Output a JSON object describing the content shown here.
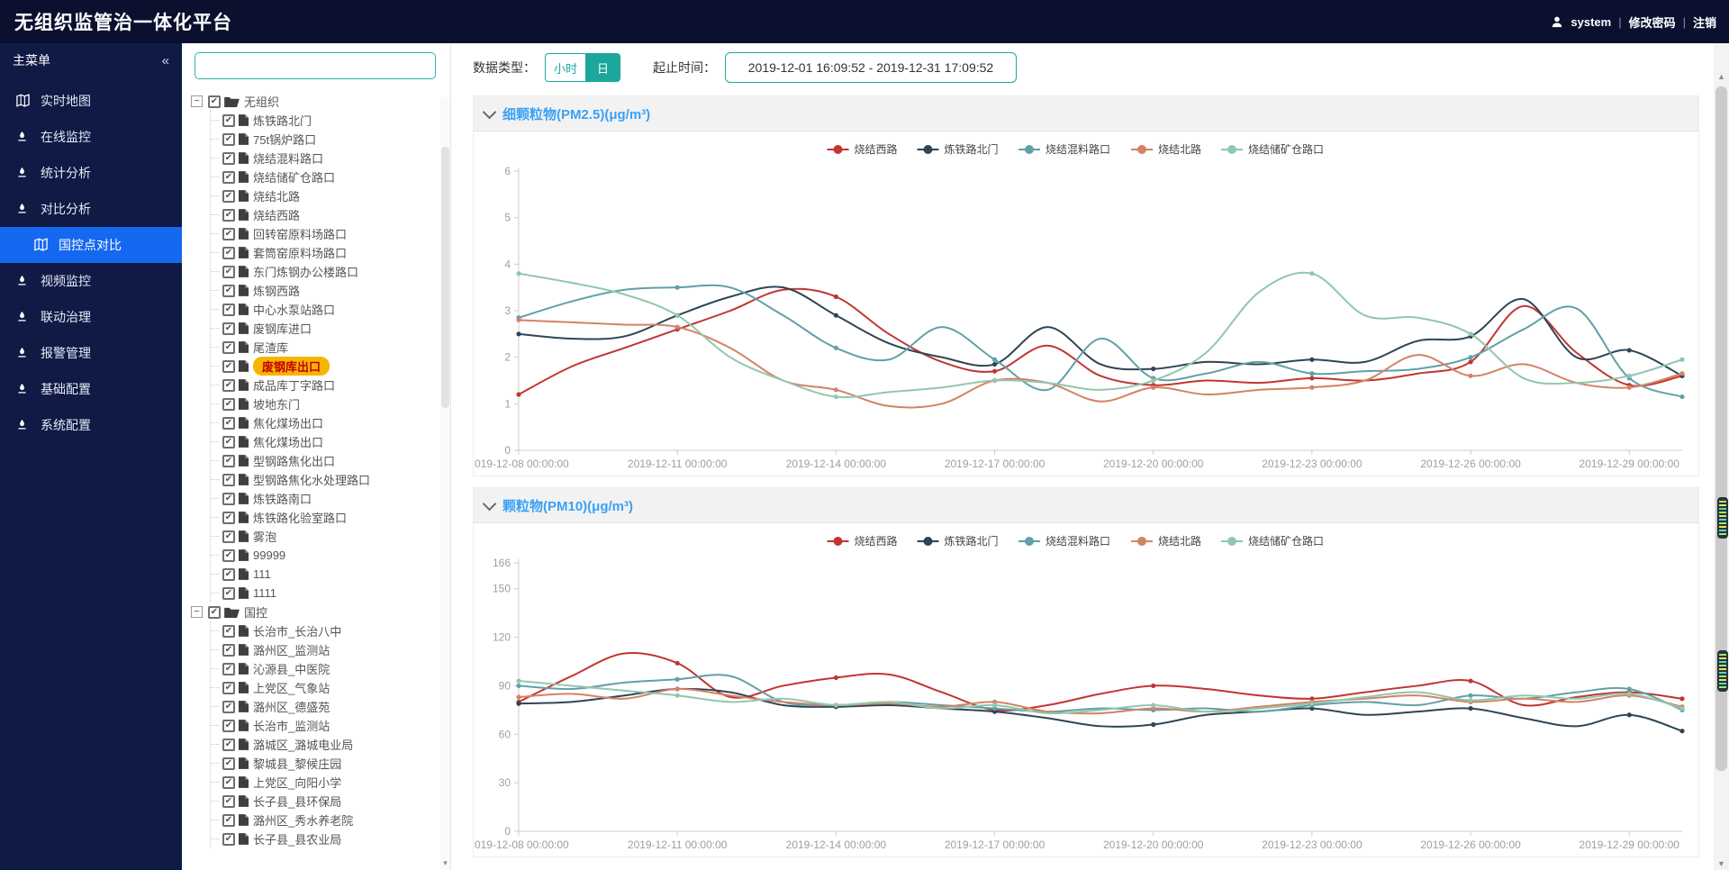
{
  "header": {
    "title": "无组织监管治一体化平台",
    "username": "system",
    "change_password": "修改密码",
    "logout": "注销",
    "separator": "|"
  },
  "sidebar": {
    "title": "主菜单",
    "collapse_glyph": "«",
    "items": [
      {
        "label": "实时地图",
        "icon": "map-icon",
        "active": false,
        "child": false
      },
      {
        "label": "在线监控",
        "icon": "pen-icon",
        "active": false,
        "child": false
      },
      {
        "label": "统计分析",
        "icon": "pen-icon",
        "active": false,
        "child": false
      },
      {
        "label": "对比分析",
        "icon": "pen-icon",
        "active": false,
        "child": false
      },
      {
        "label": "国控点对比",
        "icon": "map-icon",
        "active": true,
        "child": true
      },
      {
        "label": "视频监控",
        "icon": "pen-icon",
        "active": false,
        "child": false
      },
      {
        "label": "联动治理",
        "icon": "pen-icon",
        "active": false,
        "child": false
      },
      {
        "label": "报警管理",
        "icon": "pen-icon",
        "active": false,
        "child": false
      },
      {
        "label": "基础配置",
        "icon": "pen-icon",
        "active": false,
        "child": false
      },
      {
        "label": "系统配置",
        "icon": "pen-icon",
        "active": false,
        "child": false
      }
    ]
  },
  "tree": {
    "search_value": "",
    "search_placeholder": "",
    "expander_glyph": "−",
    "check_glyph": "✔",
    "roots": [
      {
        "label": "无组织",
        "children": [
          {
            "label": "炼铁路北门"
          },
          {
            "label": "75t锅炉路口"
          },
          {
            "label": "烧结混料路口"
          },
          {
            "label": "烧结储矿仓路口"
          },
          {
            "label": "烧结北路"
          },
          {
            "label": "烧结西路"
          },
          {
            "label": "回转窑原料场路口"
          },
          {
            "label": "套筒窑原料场路口"
          },
          {
            "label": "东门炼钢办公楼路口"
          },
          {
            "label": "炼钢西路"
          },
          {
            "label": "中心水泵站路口"
          },
          {
            "label": "废钢库进口"
          },
          {
            "label": "尾渣库"
          },
          {
            "label": "废钢库出口",
            "highlighted": true
          },
          {
            "label": "成品库丁字路口"
          },
          {
            "label": "坡地东门"
          },
          {
            "label": "焦化煤场出口"
          },
          {
            "label": "焦化煤场出口"
          },
          {
            "label": "型钢路焦化出口"
          },
          {
            "label": "型钢路焦化水处理路口"
          },
          {
            "label": "炼铁路南口"
          },
          {
            "label": "炼铁路化验室路口"
          },
          {
            "label": "雾泡"
          },
          {
            "label": "99999"
          },
          {
            "label": "111"
          },
          {
            "label": "1111"
          }
        ]
      },
      {
        "label": "国控",
        "children": [
          {
            "label": "长治市_长治八中"
          },
          {
            "label": "潞州区_监测站"
          },
          {
            "label": "沁源县_中医院"
          },
          {
            "label": "上党区_气象站"
          },
          {
            "label": "潞州区_德盛苑"
          },
          {
            "label": "长治市_监测站"
          },
          {
            "label": "潞城区_潞城电业局"
          },
          {
            "label": "黎城县_黎候庄园"
          },
          {
            "label": "上党区_向阳小学"
          },
          {
            "label": "长子县_县环保局"
          },
          {
            "label": "潞州区_秀水养老院"
          },
          {
            "label": "长子县_县农业局"
          }
        ]
      }
    ]
  },
  "toolbar": {
    "data_type_label": "数据类型：",
    "hour_label": "小时",
    "day_label": "日",
    "active_type": "日",
    "range_label": "起止时间：",
    "range_value": "2019-12-01 16:09:52 - 2019-12-31 17:09:52"
  },
  "colors": {
    "accent_teal": "#1ba79c",
    "header_bg": "#0a102e",
    "sidebar_bg": "#0f1a45",
    "active_menu": "#1568f0",
    "panel_title_blue": "#3aa1f5",
    "highlight_bg": "#f7b402",
    "highlight_text": "#c40000",
    "series_palette": [
      "#c23531",
      "#2f4554",
      "#61a0a8",
      "#d48265",
      "#91c7ae"
    ]
  },
  "chart_data": [
    {
      "type": "line",
      "title": "细颗粒物(PM2.5)(μg/m³)",
      "xlabel": "",
      "ylabel": "",
      "ylim": [
        0,
        6
      ],
      "yticks": [
        0,
        1,
        2,
        3,
        4,
        5,
        6
      ],
      "grid": false,
      "legend_position": "top-center",
      "x": [
        "2019-12-08",
        "2019-12-09",
        "2019-12-10",
        "2019-12-11",
        "2019-12-12",
        "2019-12-13",
        "2019-12-14",
        "2019-12-15",
        "2019-12-16",
        "2019-12-17",
        "2019-12-18",
        "2019-12-19",
        "2019-12-20",
        "2019-12-21",
        "2019-12-22",
        "2019-12-23",
        "2019-12-24",
        "2019-12-25",
        "2019-12-26",
        "2019-12-27",
        "2019-12-28",
        "2019-12-29",
        "2019-12-30"
      ],
      "tick_every": 3,
      "tick_suffix": " 00:00:00",
      "series": [
        {
          "name": "烧结西路",
          "color": "#c23531",
          "values": [
            1.2,
            1.8,
            2.2,
            2.6,
            3.0,
            3.45,
            3.3,
            2.5,
            1.9,
            1.7,
            2.25,
            1.6,
            1.4,
            1.5,
            1.45,
            1.55,
            1.5,
            1.65,
            1.9,
            3.1,
            2.1,
            1.4,
            1.6
          ]
        },
        {
          "name": "炼铁路北门",
          "color": "#2f4554",
          "values": [
            2.5,
            2.4,
            2.45,
            2.9,
            3.3,
            3.5,
            2.9,
            2.3,
            2.0,
            1.85,
            2.65,
            1.85,
            1.75,
            1.9,
            1.85,
            1.95,
            1.9,
            2.35,
            2.45,
            3.25,
            2.0,
            2.15,
            1.6
          ]
        },
        {
          "name": "烧结混料路口",
          "color": "#61a0a8",
          "values": [
            2.85,
            3.2,
            3.45,
            3.5,
            3.5,
            2.9,
            2.2,
            1.95,
            2.65,
            1.95,
            1.3,
            2.4,
            1.55,
            1.65,
            1.9,
            1.65,
            1.7,
            1.75,
            2.0,
            2.6,
            3.05,
            1.55,
            1.15
          ]
        },
        {
          "name": "烧结北路",
          "color": "#d48265",
          "values": [
            2.8,
            2.75,
            2.7,
            2.65,
            2.2,
            1.5,
            1.3,
            0.95,
            1.0,
            1.5,
            1.45,
            1.05,
            1.35,
            1.2,
            1.3,
            1.35,
            1.5,
            2.05,
            1.6,
            1.85,
            1.45,
            1.35,
            1.65
          ]
        },
        {
          "name": "烧结储矿仓路口",
          "color": "#91c7ae",
          "values": [
            3.8,
            3.6,
            3.35,
            2.9,
            2.0,
            1.5,
            1.15,
            1.25,
            1.35,
            1.5,
            1.45,
            1.3,
            1.5,
            2.1,
            3.4,
            3.8,
            2.9,
            2.85,
            2.5,
            1.55,
            1.45,
            1.6,
            1.95
          ]
        }
      ]
    },
    {
      "type": "line",
      "title": "颗粒物(PM10)(μg/m³)",
      "xlabel": "",
      "ylabel": "",
      "ylim": [
        0,
        166
      ],
      "yticks": [
        0,
        30,
        60,
        90,
        120,
        150,
        166
      ],
      "grid": false,
      "legend_position": "top-center",
      "x": [
        "2019-12-08",
        "2019-12-09",
        "2019-12-10",
        "2019-12-11",
        "2019-12-12",
        "2019-12-13",
        "2019-12-14",
        "2019-12-15",
        "2019-12-16",
        "2019-12-17",
        "2019-12-18",
        "2019-12-19",
        "2019-12-20",
        "2019-12-21",
        "2019-12-22",
        "2019-12-23",
        "2019-12-24",
        "2019-12-25",
        "2019-12-26",
        "2019-12-27",
        "2019-12-28",
        "2019-12-29",
        "2019-12-30"
      ],
      "tick_every": 3,
      "tick_suffix": " 00:00:00",
      "series": [
        {
          "name": "烧结西路",
          "color": "#c23531",
          "values": [
            80,
            96,
            110,
            104,
            83,
            90,
            95,
            97,
            86,
            75,
            78,
            85,
            90,
            88,
            84,
            82,
            86,
            90,
            93,
            78,
            83,
            86,
            82
          ]
        },
        {
          "name": "炼铁路北门",
          "color": "#2f4554",
          "values": [
            79,
            80,
            84,
            88,
            86,
            78,
            77,
            78,
            76,
            74,
            70,
            65,
            66,
            72,
            74,
            76,
            72,
            74,
            76,
            70,
            65,
            72,
            62
          ]
        },
        {
          "name": "烧结混料路口",
          "color": "#61a0a8",
          "values": [
            90,
            88,
            92,
            94,
            96,
            80,
            78,
            80,
            78,
            76,
            74,
            76,
            75,
            76,
            74,
            78,
            80,
            78,
            84,
            82,
            86,
            88,
            75
          ]
        },
        {
          "name": "烧结北路",
          "color": "#d48265",
          "values": [
            83,
            85,
            82,
            88,
            84,
            80,
            78,
            79,
            77,
            80,
            74,
            73,
            76,
            74,
            77,
            80,
            82,
            84,
            80,
            82,
            80,
            84,
            77
          ]
        },
        {
          "name": "烧结储矿仓路口",
          "color": "#91c7ae",
          "values": [
            93,
            90,
            87,
            84,
            80,
            82,
            78,
            80,
            76,
            78,
            73,
            75,
            78,
            74,
            76,
            79,
            83,
            86,
            81,
            84,
            82,
            85,
            76
          ]
        }
      ]
    }
  ],
  "scrollbars": {
    "up_glyph": "▲",
    "down_glyph": "▼",
    "small_down_glyph": "▾"
  }
}
